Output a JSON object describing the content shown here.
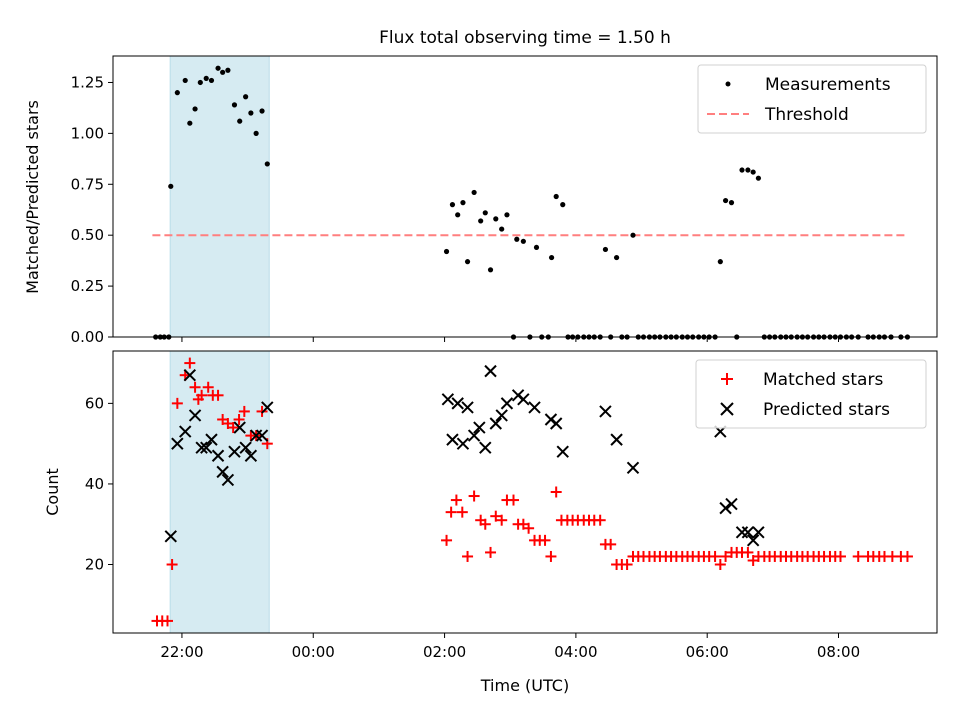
{
  "chart_data": [
    {
      "type": "scatter",
      "title": "Flux total observing time = 1.50 h",
      "ylabel": "Matched/Predicted stars",
      "xlabel": "",
      "x_unit": "hours (UTC), values > 24 are next day",
      "xlim": [
        20.95,
        33.5
      ],
      "ylim": [
        0,
        1.38
      ],
      "yticks": [
        "0.00",
        "0.25",
        "0.50",
        "0.75",
        "1.00",
        "1.25"
      ],
      "xticks": [
        "22:00",
        "00:00",
        "02:00",
        "04:00",
        "06:00",
        "08:00"
      ],
      "grid": false,
      "legend_position": "top-right",
      "shaded_interval": [
        21.82,
        23.33
      ],
      "shade_color": "#add8e6",
      "threshold": {
        "name": "Threshold",
        "value": 0.5,
        "x_range": [
          21.55,
          33.05
        ],
        "color": "#ff7f7f"
      },
      "series": [
        {
          "name": "Measurements",
          "color": "#000000",
          "marker": "dot",
          "points": [
            [
              21.6,
              0
            ],
            [
              21.67,
              0
            ],
            [
              21.73,
              0
            ],
            [
              21.8,
              0
            ],
            [
              21.83,
              0.74
            ],
            [
              21.93,
              1.2
            ],
            [
              22.05,
              1.26
            ],
            [
              22.12,
              1.05
            ],
            [
              22.2,
              1.12
            ],
            [
              22.28,
              1.25
            ],
            [
              22.37,
              1.27
            ],
            [
              22.45,
              1.26
            ],
            [
              22.55,
              1.32
            ],
            [
              22.62,
              1.3
            ],
            [
              22.7,
              1.31
            ],
            [
              22.8,
              1.14
            ],
            [
              22.88,
              1.06
            ],
            [
              22.97,
              1.18
            ],
            [
              23.05,
              1.1
            ],
            [
              23.13,
              1.0
            ],
            [
              23.22,
              1.11
            ],
            [
              23.3,
              0.85
            ],
            [
              26.03,
              0.42
            ],
            [
              26.12,
              0.65
            ],
            [
              26.2,
              0.6
            ],
            [
              26.28,
              0.66
            ],
            [
              26.35,
              0.37
            ],
            [
              26.45,
              0.71
            ],
            [
              26.55,
              0.57
            ],
            [
              26.62,
              0.61
            ],
            [
              26.7,
              0.33
            ],
            [
              26.78,
              0.58
            ],
            [
              26.87,
              0.53
            ],
            [
              26.95,
              0.6
            ],
            [
              27.05,
              0
            ],
            [
              27.1,
              0.48
            ],
            [
              27.2,
              0.47
            ],
            [
              27.3,
              0
            ],
            [
              27.4,
              0.44
            ],
            [
              27.48,
              0
            ],
            [
              27.58,
              0
            ],
            [
              27.63,
              0.39
            ],
            [
              27.7,
              0.69
            ],
            [
              27.8,
              0.65
            ],
            [
              27.88,
              0
            ],
            [
              27.95,
              0
            ],
            [
              28.03,
              0
            ],
            [
              28.12,
              0
            ],
            [
              28.2,
              0
            ],
            [
              28.28,
              0
            ],
            [
              28.37,
              0
            ],
            [
              28.45,
              0.43
            ],
            [
              28.53,
              0
            ],
            [
              28.62,
              0.39
            ],
            [
              28.7,
              0
            ],
            [
              28.78,
              0
            ],
            [
              28.87,
              0.5
            ],
            [
              28.95,
              0
            ],
            [
              29.03,
              0
            ],
            [
              29.12,
              0
            ],
            [
              29.2,
              0
            ],
            [
              29.28,
              0
            ],
            [
              29.37,
              0
            ],
            [
              29.45,
              0
            ],
            [
              29.53,
              0
            ],
            [
              29.62,
              0
            ],
            [
              29.7,
              0
            ],
            [
              29.78,
              0
            ],
            [
              29.87,
              0
            ],
            [
              29.95,
              0
            ],
            [
              30.03,
              0
            ],
            [
              30.12,
              0
            ],
            [
              30.2,
              0.37
            ],
            [
              30.28,
              0.67
            ],
            [
              30.37,
              0.66
            ],
            [
              30.45,
              0
            ],
            [
              30.53,
              0.82
            ],
            [
              30.62,
              0.82
            ],
            [
              30.7,
              0.81
            ],
            [
              30.78,
              0.78
            ],
            [
              30.87,
              0
            ],
            [
              30.95,
              0
            ],
            [
              31.03,
              0
            ],
            [
              31.12,
              0
            ],
            [
              31.2,
              0
            ],
            [
              31.28,
              0
            ],
            [
              31.37,
              0
            ],
            [
              31.45,
              0
            ],
            [
              31.53,
              0
            ],
            [
              31.62,
              0
            ],
            [
              31.7,
              0
            ],
            [
              31.78,
              0
            ],
            [
              31.87,
              0
            ],
            [
              31.95,
              0
            ],
            [
              32.03,
              0
            ],
            [
              32.12,
              0
            ],
            [
              32.2,
              0
            ],
            [
              32.3,
              0
            ],
            [
              32.45,
              0
            ],
            [
              32.53,
              0
            ],
            [
              32.62,
              0
            ],
            [
              32.7,
              0
            ],
            [
              32.8,
              0
            ],
            [
              32.95,
              0
            ],
            [
              33.05,
              0
            ]
          ]
        }
      ]
    },
    {
      "type": "scatter",
      "title": "",
      "ylabel": "Count",
      "xlabel": "Time (UTC)",
      "xlim": [
        20.95,
        33.5
      ],
      "ylim": [
        3,
        73
      ],
      "yticks": [
        "20",
        "40",
        "60"
      ],
      "xticks": [
        "22:00",
        "00:00",
        "02:00",
        "04:00",
        "06:00",
        "08:00"
      ],
      "grid": false,
      "legend_position": "top-right",
      "shaded_interval": [
        21.82,
        23.33
      ],
      "shade_color": "#add8e6",
      "series": [
        {
          "name": "Matched stars",
          "color": "#ff0000",
          "marker": "plus",
          "points": [
            [
              21.62,
              6
            ],
            [
              21.7,
              6
            ],
            [
              21.78,
              6
            ],
            [
              21.85,
              20
            ],
            [
              21.93,
              60
            ],
            [
              22.05,
              67
            ],
            [
              22.12,
              70
            ],
            [
              22.2,
              64
            ],
            [
              22.25,
              61
            ],
            [
              22.3,
              62
            ],
            [
              22.4,
              64
            ],
            [
              22.47,
              62
            ],
            [
              22.55,
              62
            ],
            [
              22.62,
              56
            ],
            [
              22.7,
              55
            ],
            [
              22.78,
              54
            ],
            [
              22.87,
              56
            ],
            [
              22.95,
              58
            ],
            [
              23.05,
              52
            ],
            [
              23.13,
              52
            ],
            [
              23.22,
              58
            ],
            [
              23.3,
              50
            ],
            [
              26.03,
              26
            ],
            [
              26.1,
              33
            ],
            [
              26.18,
              36
            ],
            [
              26.27,
              33
            ],
            [
              26.35,
              22
            ],
            [
              26.45,
              37
            ],
            [
              26.55,
              31
            ],
            [
              26.62,
              30
            ],
            [
              26.7,
              23
            ],
            [
              26.78,
              32
            ],
            [
              26.87,
              31
            ],
            [
              26.95,
              36
            ],
            [
              27.05,
              36
            ],
            [
              27.12,
              30
            ],
            [
              27.2,
              30
            ],
            [
              27.28,
              29
            ],
            [
              27.37,
              26
            ],
            [
              27.45,
              26
            ],
            [
              27.53,
              26
            ],
            [
              27.62,
              22
            ],
            [
              27.7,
              38
            ],
            [
              27.78,
              31
            ],
            [
              27.87,
              31
            ],
            [
              27.95,
              31
            ],
            [
              28.03,
              31
            ],
            [
              28.12,
              31
            ],
            [
              28.2,
              31
            ],
            [
              28.28,
              31
            ],
            [
              28.37,
              31
            ],
            [
              28.45,
              25
            ],
            [
              28.53,
              25
            ],
            [
              28.62,
              20
            ],
            [
              28.7,
              20
            ],
            [
              28.78,
              20
            ],
            [
              28.87,
              22
            ],
            [
              28.95,
              22
            ],
            [
              29.03,
              22
            ],
            [
              29.12,
              22
            ],
            [
              29.2,
              22
            ],
            [
              29.28,
              22
            ],
            [
              29.37,
              22
            ],
            [
              29.45,
              22
            ],
            [
              29.53,
              22
            ],
            [
              29.62,
              22
            ],
            [
              29.7,
              22
            ],
            [
              29.78,
              22
            ],
            [
              29.87,
              22
            ],
            [
              29.95,
              22
            ],
            [
              30.03,
              22
            ],
            [
              30.12,
              22
            ],
            [
              30.2,
              20
            ],
            [
              30.28,
              22
            ],
            [
              30.37,
              23
            ],
            [
              30.45,
              23
            ],
            [
              30.53,
              23
            ],
            [
              30.62,
              23
            ],
            [
              30.7,
              21
            ],
            [
              30.78,
              22
            ],
            [
              30.87,
              22
            ],
            [
              30.95,
              22
            ],
            [
              31.03,
              22
            ],
            [
              31.12,
              22
            ],
            [
              31.2,
              22
            ],
            [
              31.28,
              22
            ],
            [
              31.37,
              22
            ],
            [
              31.45,
              22
            ],
            [
              31.53,
              22
            ],
            [
              31.62,
              22
            ],
            [
              31.7,
              22
            ],
            [
              31.78,
              22
            ],
            [
              31.87,
              22
            ],
            [
              31.95,
              22
            ],
            [
              32.03,
              22
            ],
            [
              32.3,
              22
            ],
            [
              32.45,
              22
            ],
            [
              32.53,
              22
            ],
            [
              32.62,
              22
            ],
            [
              32.7,
              22
            ],
            [
              32.82,
              22
            ],
            [
              32.95,
              22
            ],
            [
              33.05,
              22
            ]
          ]
        },
        {
          "name": "Predicted stars",
          "color": "#000000",
          "marker": "x",
          "points": [
            [
              21.83,
              27
            ],
            [
              21.93,
              50
            ],
            [
              22.05,
              53
            ],
            [
              22.12,
              67
            ],
            [
              22.2,
              57
            ],
            [
              22.3,
              49
            ],
            [
              22.37,
              49
            ],
            [
              22.45,
              51
            ],
            [
              22.55,
              47
            ],
            [
              22.62,
              43
            ],
            [
              22.7,
              41
            ],
            [
              22.8,
              48
            ],
            [
              22.88,
              54
            ],
            [
              22.97,
              49
            ],
            [
              23.05,
              47
            ],
            [
              23.13,
              52
            ],
            [
              23.22,
              52
            ],
            [
              23.3,
              59
            ],
            [
              26.05,
              61
            ],
            [
              26.12,
              51
            ],
            [
              26.2,
              60
            ],
            [
              26.28,
              50
            ],
            [
              26.35,
              59
            ],
            [
              26.45,
              52
            ],
            [
              26.53,
              54
            ],
            [
              26.62,
              49
            ],
            [
              26.7,
              68
            ],
            [
              26.78,
              55
            ],
            [
              26.87,
              57
            ],
            [
              26.95,
              60
            ],
            [
              27.12,
              62
            ],
            [
              27.2,
              61
            ],
            [
              27.37,
              59
            ],
            [
              27.62,
              56
            ],
            [
              27.7,
              55
            ],
            [
              27.8,
              48
            ],
            [
              28.45,
              58
            ],
            [
              28.62,
              51
            ],
            [
              28.87,
              44
            ],
            [
              30.2,
              53
            ],
            [
              30.28,
              34
            ],
            [
              30.37,
              35
            ],
            [
              30.53,
              28
            ],
            [
              30.62,
              28
            ],
            [
              30.7,
              26
            ],
            [
              30.78,
              28
            ]
          ]
        }
      ]
    }
  ]
}
